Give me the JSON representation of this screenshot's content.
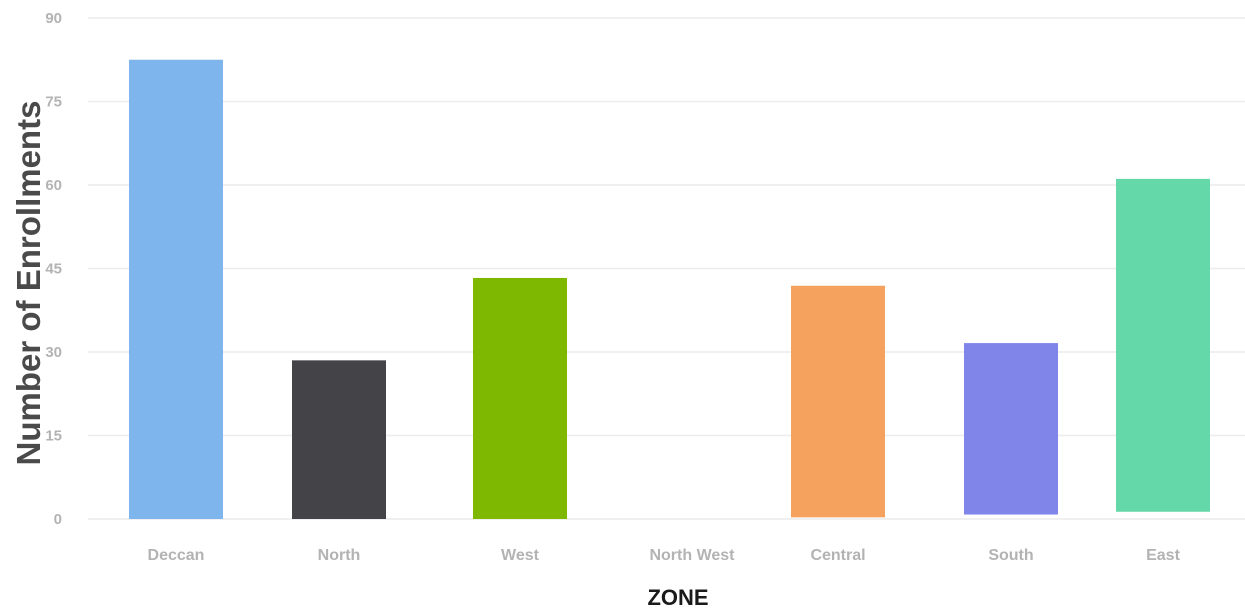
{
  "chart_data": {
    "type": "bar",
    "categories": [
      "Deccan",
      "North",
      "West",
      "North West",
      "Central",
      "South",
      "East"
    ],
    "series": [
      {
        "values": [
          [
            0,
            82.5
          ],
          [
            0,
            28.5
          ],
          [
            0,
            43.3
          ],
          [
            0,
            0
          ],
          [
            0.3,
            41.9
          ],
          [
            0.8,
            31.6
          ],
          [
            1.3,
            61.1
          ]
        ]
      }
    ],
    "colors": [
      "#7db5ec",
      "#434348",
      "#7fb800",
      "#2b908f",
      "#f4a25d",
      "#8085e9",
      "#64d8a8"
    ],
    "xlabel": "ZONE",
    "ylabel": "Number of Enrollments",
    "ylim": [
      0,
      90
    ],
    "yticks": [
      0,
      15,
      30,
      45,
      60,
      75,
      90
    ],
    "grid": true,
    "legend": "none"
  }
}
